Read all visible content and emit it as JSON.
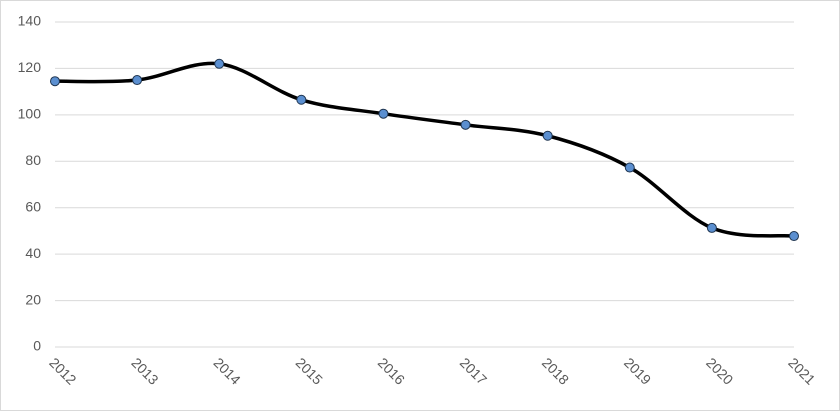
{
  "chart_data": {
    "type": "line",
    "smooth": true,
    "x": [
      2012,
      2013,
      2014,
      2015,
      2016,
      2017,
      2018,
      2019,
      2020,
      2021
    ],
    "xlim": [
      2012,
      2021
    ],
    "series": [
      {
        "color": "#000000",
        "marker_color": "#5b8fd0",
        "values": [
          114.5,
          115,
          122,
          106.5,
          100.5,
          95.7,
          91,
          77.3,
          51.3,
          47.8
        ]
      }
    ],
    "ylim": [
      0,
      140
    ],
    "yticks": [
      0,
      20,
      40,
      60,
      80,
      100,
      120,
      140
    ],
    "grid": true
  }
}
